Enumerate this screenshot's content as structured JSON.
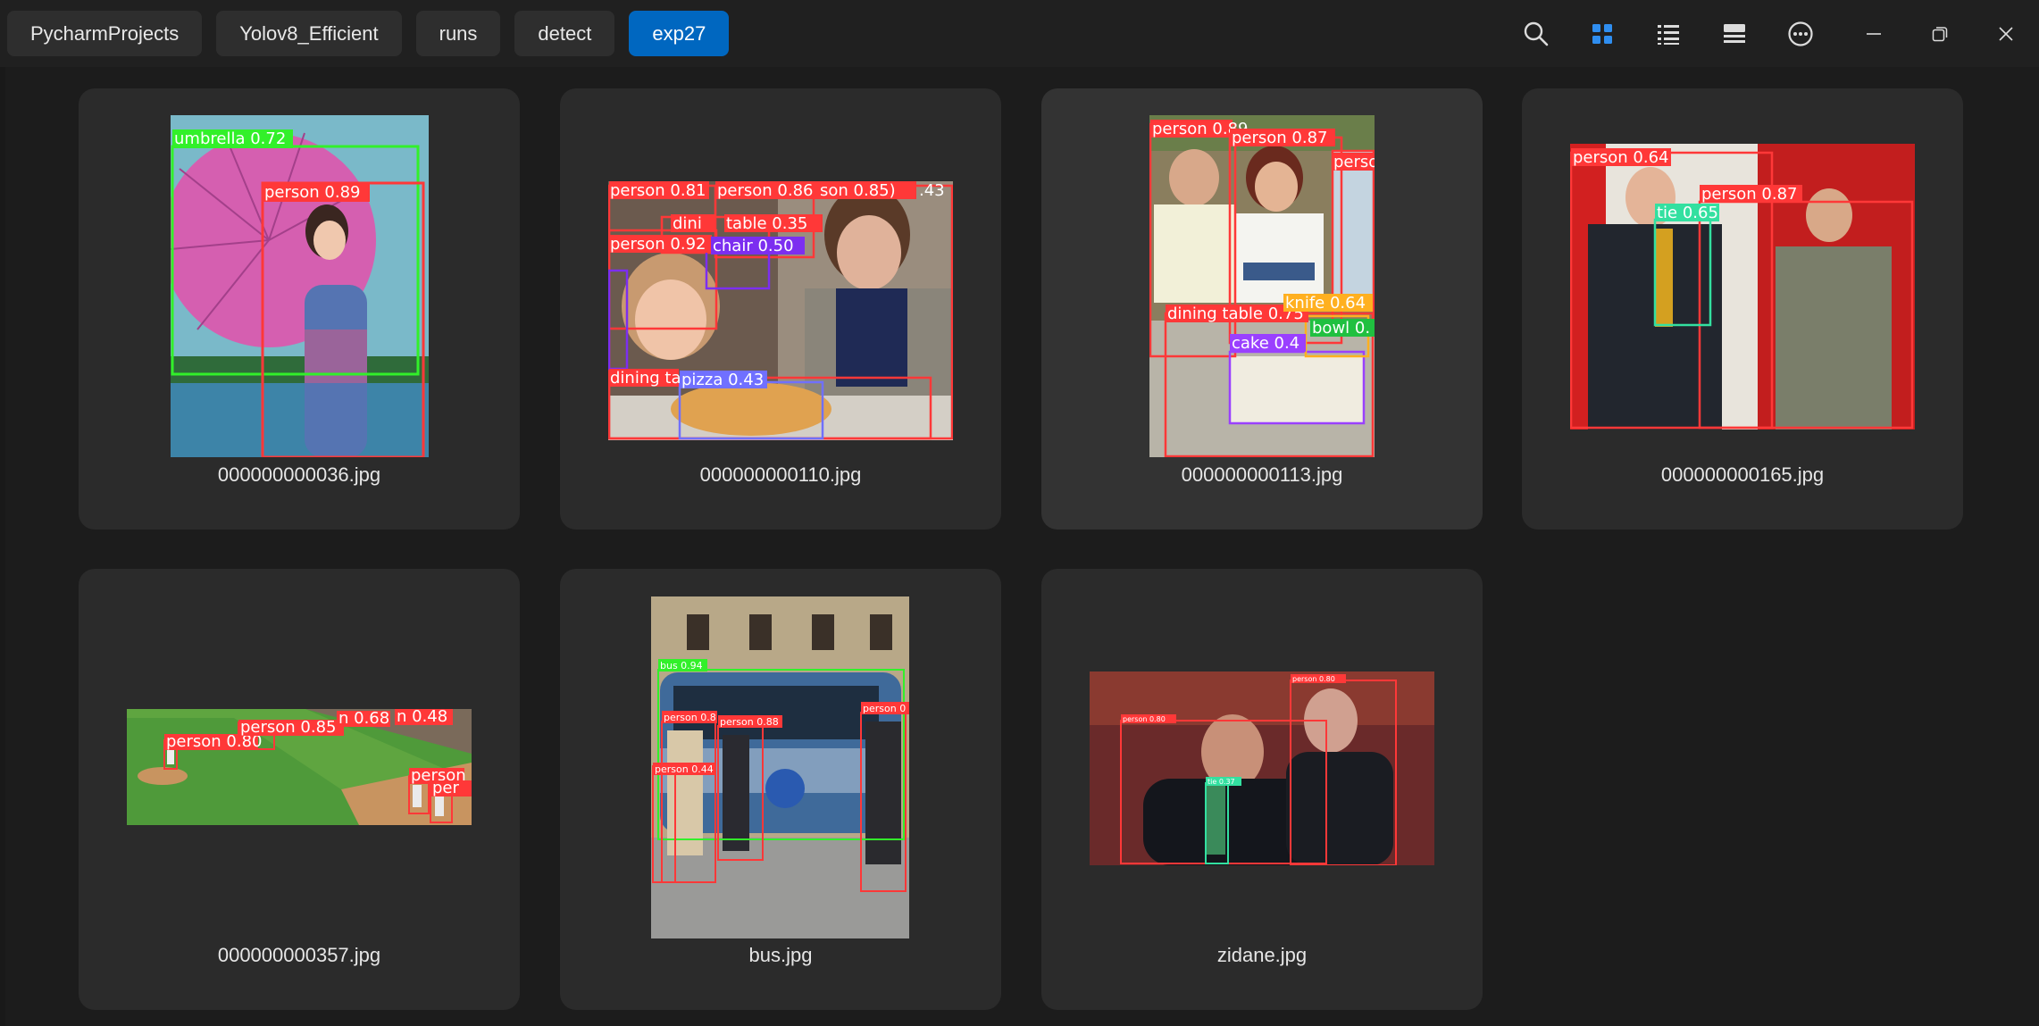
{
  "breadcrumbs": [
    {
      "label": "PycharmProjects"
    },
    {
      "label": "Yolov8_Efficient"
    },
    {
      "label": "runs"
    },
    {
      "label": "detect"
    },
    {
      "label": "exp27"
    }
  ],
  "toolbar": {
    "search_icon": "search-icon",
    "grid_view_icon": "grid-view-icon",
    "list_view_icon": "list-view-icon",
    "details_view_icon": "details-view-icon",
    "more_icon": "more-icon",
    "accent_color": "#0067c0"
  },
  "window_controls": {
    "minimize_icon": "minimize-icon",
    "restore_icon": "restore-icon",
    "close_icon": "close-icon"
  },
  "files": [
    {
      "name": "000000000036.jpg",
      "labels": [
        "umbrella 0.72",
        "person 0.89"
      ]
    },
    {
      "name": "000000000110.jpg",
      "labels": [
        "person 0.81",
        "person 0.86",
        "son 0.85)",
        ".43",
        "dini",
        "table 0.35",
        "person 0.92",
        "chair 0.50",
        "dining ta",
        "pizza 0.43"
      ]
    },
    {
      "name": "000000000113.jpg",
      "labels": [
        "person 0.89",
        "person 0.87",
        "perso",
        "dining table 0.75",
        "knife 0.64",
        "cake 0.4",
        "bowl 0."
      ]
    },
    {
      "name": "000000000165.jpg",
      "labels": [
        "person 0.64",
        "person 0.87",
        "tie 0.65"
      ]
    },
    {
      "name": "000000000357.jpg",
      "labels": [
        "person 0.80",
        "person 0.85",
        "n 0.68",
        "n 0.48",
        "person",
        "per"
      ]
    },
    {
      "name": "bus.jpg",
      "labels": [
        "bus 0.94",
        "person 0.8",
        "person 0.88",
        "person 0",
        "person 0.44"
      ]
    },
    {
      "name": "zidane.jpg",
      "labels": [
        "person 0.80",
        "person 0.80",
        "tie 0.37"
      ]
    }
  ]
}
